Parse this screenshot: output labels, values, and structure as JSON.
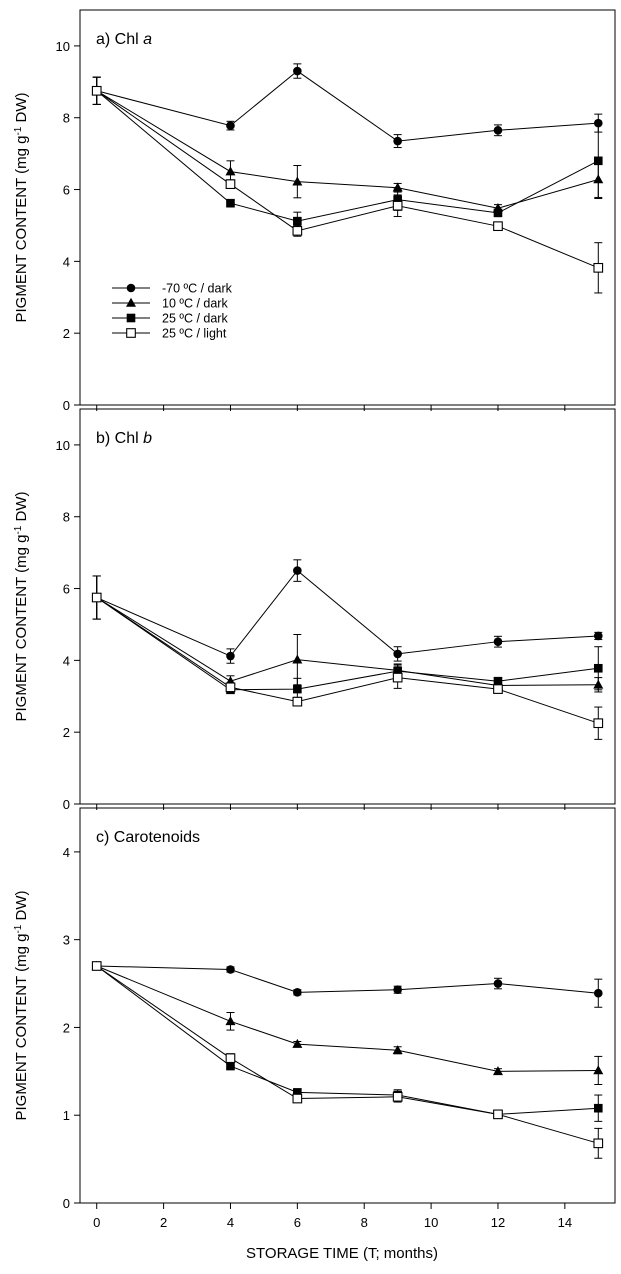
{
  "figure": {
    "xlabel": "STORAGE TIME (T; months)",
    "ylabel_main": "PIGMENT CONTENT (mg g",
    "ylabel_sup": "-1",
    "ylabel_tail": " DW)"
  },
  "legend": [
    {
      "name": "-70 ºC / dark",
      "marker": "circle"
    },
    {
      "name": "10 ºC / dark",
      "marker": "triangle"
    },
    {
      "name": "25 ºC / dark",
      "marker": "square"
    },
    {
      "name": "25 ºC / light",
      "marker": "open-square"
    }
  ],
  "chart_data": [
    {
      "type": "line",
      "panel_label": "a)",
      "title_prefix": "Chl",
      "title_italic": "a",
      "x": [
        0,
        4,
        6,
        9,
        12,
        15
      ],
      "xlim": [
        -0.5,
        15.5
      ],
      "ylim": [
        0,
        11
      ],
      "yticks": [
        0,
        2,
        4,
        6,
        8,
        10
      ],
      "xticks": [
        0,
        2,
        4,
        6,
        8,
        10,
        12,
        14
      ],
      "grid": false,
      "legend_position": "left-middle",
      "series": [
        {
          "name": "-70 ºC / dark",
          "marker": "circle",
          "values": [
            8.75,
            7.78,
            9.3,
            7.35,
            7.65,
            7.85
          ],
          "err": [
            0.38,
            0.12,
            0.2,
            0.18,
            0.15,
            0.25
          ]
        },
        {
          "name": "10 ºC / dark",
          "marker": "triangle",
          "values": [
            8.75,
            6.5,
            6.22,
            6.05,
            5.48,
            6.28
          ],
          "err": [
            0.38,
            0.3,
            0.45,
            0.12,
            0.1,
            0.5
          ]
        },
        {
          "name": "25 ºC / dark",
          "marker": "square",
          "values": [
            8.75,
            5.62,
            5.12,
            5.72,
            5.35,
            6.8
          ],
          "err": [
            0.38,
            0.1,
            0.25,
            0.3,
            0.1,
            1.05
          ]
        },
        {
          "name": "25 ºC / light",
          "marker": "open-square",
          "values": [
            8.75,
            6.15,
            4.85,
            5.55,
            4.98,
            3.82
          ],
          "err": [
            0.38,
            0.12,
            0.15,
            0.3,
            0.1,
            0.7
          ]
        }
      ]
    },
    {
      "type": "line",
      "panel_label": "b)",
      "title_prefix": "Chl",
      "title_italic": "b",
      "x": [
        0,
        4,
        6,
        9,
        12,
        15
      ],
      "xlim": [
        -0.5,
        15.5
      ],
      "ylim": [
        0,
        11
      ],
      "yticks": [
        0,
        2,
        4,
        6,
        8,
        10
      ],
      "xticks": [
        0,
        2,
        4,
        6,
        8,
        10,
        12,
        14
      ],
      "grid": false,
      "series": [
        {
          "name": "-70 ºC / dark",
          "marker": "circle",
          "values": [
            5.75,
            4.12,
            6.5,
            4.18,
            4.52,
            4.68
          ],
          "err": [
            0.6,
            0.2,
            0.3,
            0.2,
            0.15,
            0.1
          ]
        },
        {
          "name": "10 ºC / dark",
          "marker": "triangle",
          "values": [
            5.75,
            3.42,
            4.02,
            3.72,
            3.3,
            3.32
          ],
          "err": [
            0.6,
            0.15,
            0.7,
            0.15,
            0.15,
            0.2
          ]
        },
        {
          "name": "25 ºC / dark",
          "marker": "square",
          "values": [
            5.75,
            3.18,
            3.2,
            3.7,
            3.42,
            3.78
          ],
          "err": [
            0.6,
            0.1,
            0.3,
            0.2,
            0.1,
            0.6
          ]
        },
        {
          "name": "25 ºC / light",
          "marker": "open-square",
          "values": [
            5.75,
            3.25,
            2.85,
            3.52,
            3.2,
            2.25
          ],
          "err": [
            0.6,
            0.1,
            0.12,
            0.3,
            0.1,
            0.45
          ]
        }
      ]
    },
    {
      "type": "line",
      "panel_label": "c)",
      "title_prefix": "Carotenoids",
      "title_italic": "",
      "x": [
        0,
        4,
        6,
        9,
        12,
        15
      ],
      "xlim": [
        -0.5,
        15.5
      ],
      "ylim": [
        0,
        4.5
      ],
      "yticks": [
        0,
        1,
        2,
        3,
        4
      ],
      "xticks": [
        0,
        2,
        4,
        6,
        8,
        10,
        12,
        14
      ],
      "grid": false,
      "series": [
        {
          "name": "-70 ºC / dark",
          "marker": "circle",
          "values": [
            2.7,
            2.66,
            2.4,
            2.43,
            2.5,
            2.39
          ],
          "err": [
            0.03,
            0.03,
            0.03,
            0.04,
            0.06,
            0.16
          ]
        },
        {
          "name": "10 ºC / dark",
          "marker": "triangle",
          "values": [
            2.7,
            2.07,
            1.81,
            1.74,
            1.5,
            1.51
          ],
          "err": [
            0.03,
            0.1,
            0.03,
            0.04,
            0.03,
            0.16
          ]
        },
        {
          "name": "25 ºC / dark",
          "marker": "square",
          "values": [
            2.7,
            1.56,
            1.26,
            1.23,
            1.01,
            1.08
          ],
          "err": [
            0.03,
            0.03,
            0.03,
            0.06,
            0.02,
            0.15
          ]
        },
        {
          "name": "25 ºC / light",
          "marker": "open-square",
          "values": [
            2.7,
            1.65,
            1.19,
            1.21,
            1.01,
            0.68
          ],
          "err": [
            0.03,
            0.05,
            0.03,
            0.06,
            0.02,
            0.17
          ]
        }
      ]
    }
  ]
}
